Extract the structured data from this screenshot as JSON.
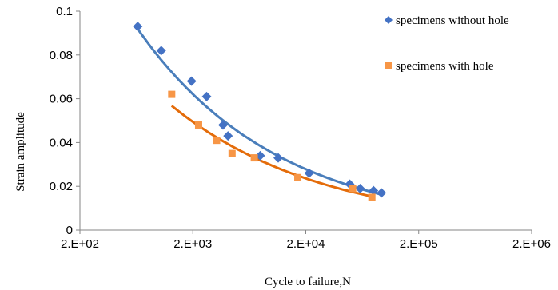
{
  "chart_data": {
    "type": "scatter",
    "xlabel": "Cycle to failure,N",
    "ylabel": "Strain amplitude",
    "x_scale": "log",
    "x_tick_values": [
      200,
      2000,
      20000,
      200000,
      2000000
    ],
    "x_tick_labels": [
      "2.E+02",
      "2.E+03",
      "2.E+04",
      "2.E+05",
      "2.E+06"
    ],
    "xlim": [
      200,
      2000000
    ],
    "y_ticks": [
      0,
      0.02,
      0.04,
      0.06,
      0.08,
      0.1
    ],
    "y_tick_labels": [
      "0",
      "0.02",
      "0.04",
      "0.06",
      "0.08",
      "0.1"
    ],
    "ylim": [
      0,
      0.1
    ],
    "grid": false,
    "legend_position": "right",
    "series": [
      {
        "name": "specimens without hole",
        "marker": "diamond",
        "color": "#4472C4",
        "x": [
          650,
          1050,
          1950,
          2650,
          3700,
          4100,
          7900,
          11400,
          21400,
          49000,
          60600,
          79600,
          93600
        ],
        "y": [
          0.093,
          0.082,
          0.068,
          0.061,
          0.048,
          0.043,
          0.034,
          0.033,
          0.026,
          0.021,
          0.019,
          0.018,
          0.017
        ],
        "fit_color": "#4A7EBB"
      },
      {
        "name": "specimens with hole",
        "marker": "square",
        "color": "#F79646",
        "x": [
          1300,
          2250,
          3250,
          4450,
          7000,
          17000,
          52000,
          77000
        ],
        "y": [
          0.062,
          0.048,
          0.041,
          0.035,
          0.033,
          0.024,
          0.019,
          0.015
        ],
        "fit_color": "#E46C0A"
      }
    ]
  }
}
